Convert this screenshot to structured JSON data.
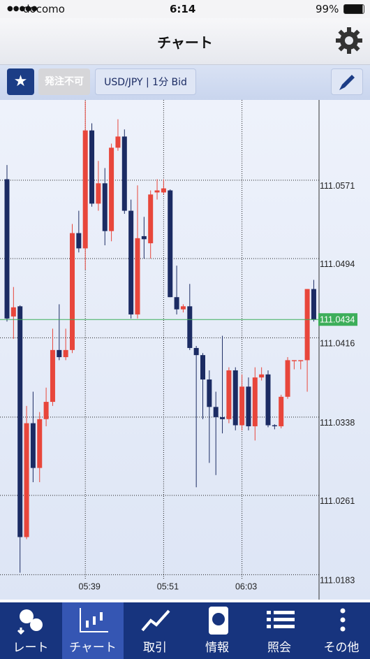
{
  "status_bar": {
    "carrier": "docomo",
    "time": "6:14",
    "battery": "99%"
  },
  "header": {
    "title": "チャート"
  },
  "toolbar": {
    "order_status": "発注不可",
    "symbol": "USD/JPY | 1分 Bid"
  },
  "tabs": [
    "レート",
    "チャート",
    "取引",
    "情報",
    "照会",
    "その他"
  ],
  "chart_data": {
    "type": "candlestick",
    "categories": [
      null,
      null,
      null,
      null,
      null,
      null,
      null,
      null,
      null,
      null,
      null,
      null,
      "05:39",
      null,
      null,
      null,
      null,
      null,
      null,
      null,
      null,
      null,
      null,
      null,
      "05:51",
      null,
      null,
      null,
      null,
      null,
      null,
      null,
      null,
      null,
      null,
      null,
      "06:03",
      null,
      null,
      null,
      null,
      null,
      null,
      null,
      null,
      null,
      null,
      null
    ],
    "open": [
      111.0572,
      111.0437,
      111.0447,
      111.022,
      111.0332,
      111.0288,
      111.0336,
      111.0353,
      111.0404,
      111.0397,
      111.0404,
      111.0519,
      111.0504,
      111.062,
      111.0548,
      111.0568,
      111.0521,
      111.0603,
      111.0614,
      111.0541,
      111.0439,
      111.0516,
      111.0509,
      111.0559,
      111.0559,
      111.0561,
      111.0456,
      111.0444,
      111.0447,
      111.0406,
      111.0399,
      111.0375,
      111.0348,
      111.0338,
      111.0336,
      111.0384,
      111.033,
      111.0368,
      111.0329,
      111.0377,
      111.038,
      111.033,
      111.0329,
      111.0358,
      111.0393,
      111.0393,
      111.0394,
      111.0464
    ],
    "high": [
      111.0586,
      111.0466,
      111.0448,
      111.0349,
      111.0363,
      111.0343,
      111.0367,
      111.0425,
      111.0449,
      111.0425,
      111.0528,
      111.0541,
      111.0649,
      111.0627,
      111.059,
      111.0583,
      111.0607,
      111.0631,
      111.0621,
      111.0552,
      111.0566,
      111.0535,
      111.0561,
      111.0572,
      111.0572,
      111.0562,
      111.0487,
      111.0449,
      111.0469,
      111.0408,
      111.0401,
      111.0384,
      111.0363,
      111.0418,
      111.0387,
      111.0387,
      111.038,
      111.0377,
      111.0387,
      111.0387,
      111.0384,
      111.0331,
      111.036,
      111.0397,
      111.0394,
      111.0394,
      111.0464,
      111.0473
    ],
    "low": [
      111.0432,
      111.0415,
      111.0185,
      111.0218,
      111.0274,
      111.0274,
      111.0329,
      111.0349,
      111.0394,
      111.0394,
      111.0401,
      111.05,
      111.0483,
      111.0545,
      111.0541,
      111.0507,
      111.0511,
      111.06,
      111.0538,
      111.0435,
      111.0435,
      111.0494,
      111.0494,
      111.0552,
      111.0557,
      111.0456,
      111.0439,
      111.0441,
      111.0404,
      111.0269,
      111.0336,
      111.0293,
      111.0281,
      111.0322,
      111.0332,
      111.0325,
      111.0325,
      111.0325,
      111.0315,
      111.0374,
      111.0328,
      111.0326,
      111.0327,
      111.0356,
      111.0385,
      111.0385,
      111.0363,
      111.0432
    ],
    "close": [
      111.0435,
      111.0446,
      111.022,
      111.0332,
      111.0288,
      111.0336,
      111.0353,
      111.0404,
      111.0397,
      111.0404,
      111.0519,
      111.0504,
      111.062,
      111.0548,
      111.0568,
      111.0521,
      111.0603,
      111.0614,
      111.0541,
      111.0439,
      111.0514,
      111.0513,
      111.0557,
      111.0561,
      111.0563,
      111.0456,
      111.0444,
      111.0447,
      111.0406,
      111.0399,
      111.0375,
      111.0348,
      111.0338,
      111.0336,
      111.0384,
      111.033,
      111.0368,
      111.0329,
      111.0377,
      111.038,
      111.033,
      111.0329,
      111.0358,
      111.0394,
      111.0394,
      111.0394,
      111.0464,
      111.0434
    ],
    "up_color": "#e8463b",
    "down_color": "#1b2b63",
    "ylim": [
      111.0164,
      111.065
    ],
    "yticks": [
      111.0571,
      111.0494,
      111.0416,
      111.0338,
      111.0261,
      111.0183
    ],
    "current_value": 111.0434,
    "current_color": "#3dae5a",
    "grid": true
  }
}
